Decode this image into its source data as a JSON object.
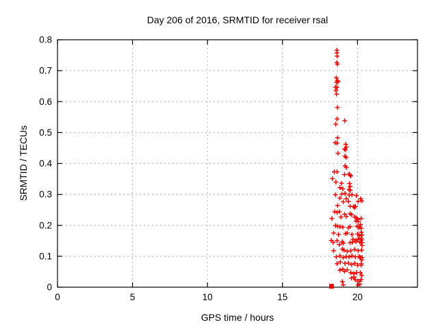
{
  "window": {
    "background": "#ffffff"
  },
  "colors": {
    "marker": "#ff0000",
    "frame": "#000000",
    "grid": "#a8a8a8",
    "text": "#000000"
  },
  "chart_data": {
    "type": "scatter",
    "title": "Day 206 of 2016, SRMTID for receiver rsal",
    "xlabel": "GPS time / hours",
    "ylabel": "SRMTID / TECUs",
    "xlim": [
      0,
      24
    ],
    "ylim": [
      0,
      0.8
    ],
    "xticks": {
      "values": [
        0,
        5,
        10,
        15,
        20
      ],
      "labels": [
        "0",
        "5",
        "10",
        "15",
        "20"
      ]
    },
    "yticks": {
      "values": [
        0,
        0.1,
        0.2,
        0.3,
        0.4,
        0.5,
        0.6,
        0.7,
        0.8
      ],
      "labels": [
        "0",
        "0.1",
        "0.2",
        "0.3",
        "0.4",
        "0.5",
        "0.6",
        "0.7",
        "0.8"
      ]
    },
    "grid": true,
    "legend": "none",
    "marker": "plus",
    "series": [
      {
        "name": "SRMTID",
        "points": [
          [
            18.62,
            0.766
          ],
          [
            18.63,
            0.758
          ],
          [
            18.65,
            0.747
          ],
          [
            18.62,
            0.726
          ],
          [
            18.66,
            0.721
          ],
          [
            18.59,
            0.677
          ],
          [
            18.67,
            0.668
          ],
          [
            18.7,
            0.664
          ],
          [
            18.6,
            0.662
          ],
          [
            18.53,
            0.647
          ],
          [
            18.64,
            0.646
          ],
          [
            18.56,
            0.636
          ],
          [
            18.6,
            0.624
          ],
          [
            18.67,
            0.581
          ],
          [
            18.64,
            0.544
          ],
          [
            19.15,
            0.538
          ],
          [
            18.55,
            0.527
          ],
          [
            18.68,
            0.483
          ],
          [
            18.51,
            0.467
          ],
          [
            18.64,
            0.466
          ],
          [
            19.22,
            0.462
          ],
          [
            19.25,
            0.453
          ],
          [
            19.15,
            0.447
          ],
          [
            19.19,
            0.444
          ],
          [
            18.7,
            0.433
          ],
          [
            19.17,
            0.424
          ],
          [
            19.24,
            0.419
          ],
          [
            19.17,
            0.392
          ],
          [
            19.26,
            0.387
          ],
          [
            18.45,
            0.373
          ],
          [
            18.64,
            0.373
          ],
          [
            19.44,
            0.366
          ],
          [
            19.14,
            0.364
          ],
          [
            19.51,
            0.362
          ],
          [
            19.55,
            0.36
          ],
          [
            18.33,
            0.351
          ],
          [
            18.56,
            0.34
          ],
          [
            18.94,
            0.336
          ],
          [
            19.47,
            0.335
          ],
          [
            19.51,
            0.325
          ],
          [
            18.83,
            0.322
          ],
          [
            19.02,
            0.318
          ],
          [
            19.44,
            0.316
          ],
          [
            19.51,
            0.313
          ],
          [
            19.17,
            0.303
          ],
          [
            18.96,
            0.301
          ],
          [
            18.53,
            0.299
          ],
          [
            19.63,
            0.299
          ],
          [
            19.44,
            0.298
          ],
          [
            19.93,
            0.296
          ],
          [
            18.83,
            0.288
          ],
          [
            19.25,
            0.286
          ],
          [
            20.21,
            0.286
          ],
          [
            20.28,
            0.279
          ],
          [
            19.4,
            0.277
          ],
          [
            20.05,
            0.277
          ],
          [
            19.05,
            0.276
          ],
          [
            18.68,
            0.264
          ],
          [
            19.51,
            0.262
          ],
          [
            19.75,
            0.261
          ],
          [
            19.86,
            0.261
          ],
          [
            19.8,
            0.258
          ],
          [
            18.48,
            0.244
          ],
          [
            18.79,
            0.244
          ],
          [
            18.64,
            0.242
          ],
          [
            19.51,
            0.238
          ],
          [
            19.14,
            0.236
          ],
          [
            19.6,
            0.234
          ],
          [
            19.25,
            0.229
          ],
          [
            18.9,
            0.227
          ],
          [
            19.81,
            0.227
          ],
          [
            19.93,
            0.224
          ],
          [
            18.29,
            0.222
          ],
          [
            20.24,
            0.222
          ],
          [
            20.01,
            0.219
          ],
          [
            19.9,
            0.214
          ],
          [
            20.05,
            0.212
          ],
          [
            20.19,
            0.202
          ],
          [
            18.53,
            0.199
          ],
          [
            18.68,
            0.197
          ],
          [
            19.96,
            0.197
          ],
          [
            18.83,
            0.196
          ],
          [
            19.51,
            0.196
          ],
          [
            20.16,
            0.196
          ],
          [
            19.02,
            0.194
          ],
          [
            19.4,
            0.192
          ],
          [
            20.08,
            0.192
          ],
          [
            20.24,
            0.19
          ],
          [
            20.25,
            0.178
          ],
          [
            18.41,
            0.175
          ],
          [
            19.32,
            0.175
          ],
          [
            19.2,
            0.173
          ],
          [
            20.01,
            0.172
          ],
          [
            18.74,
            0.17
          ],
          [
            19.63,
            0.17
          ],
          [
            20.3,
            0.169
          ],
          [
            20.11,
            0.166
          ],
          [
            20.25,
            0.158
          ],
          [
            19.7,
            0.155
          ],
          [
            20.05,
            0.155
          ],
          [
            20.28,
            0.153
          ],
          [
            18.25,
            0.151
          ],
          [
            19.9,
            0.151
          ],
          [
            18.64,
            0.15
          ],
          [
            18.99,
            0.147
          ],
          [
            19.9,
            0.147
          ],
          [
            20.16,
            0.147
          ],
          [
            18.38,
            0.145
          ],
          [
            19.66,
            0.145
          ],
          [
            19.51,
            0.144
          ],
          [
            20.24,
            0.144
          ],
          [
            20.31,
            0.144
          ],
          [
            19.05,
            0.142
          ],
          [
            18.79,
            0.138
          ],
          [
            20.31,
            0.135
          ],
          [
            18.99,
            0.123
          ],
          [
            19.81,
            0.122
          ],
          [
            19.1,
            0.12
          ],
          [
            20.27,
            0.12
          ],
          [
            18.41,
            0.118
          ],
          [
            19.55,
            0.118
          ],
          [
            20.05,
            0.118
          ],
          [
            19.32,
            0.116
          ],
          [
            18.83,
            0.101
          ],
          [
            19.63,
            0.101
          ],
          [
            19.25,
            0.099
          ],
          [
            20.11,
            0.099
          ],
          [
            18.59,
            0.098
          ],
          [
            19.44,
            0.098
          ],
          [
            19.86,
            0.098
          ],
          [
            19.05,
            0.096
          ],
          [
            20.19,
            0.096
          ],
          [
            20.31,
            0.096
          ],
          [
            20.28,
            0.088
          ],
          [
            18.86,
            0.081
          ],
          [
            19.4,
            0.078
          ],
          [
            19.17,
            0.077
          ],
          [
            19.81,
            0.077
          ],
          [
            18.64,
            0.076
          ],
          [
            20.24,
            0.076
          ],
          [
            19.6,
            0.073
          ],
          [
            20.01,
            0.071
          ],
          [
            20.24,
            0.071
          ],
          [
            19.02,
            0.058
          ],
          [
            19.32,
            0.056
          ],
          [
            18.83,
            0.055
          ],
          [
            19.14,
            0.051
          ],
          [
            19.55,
            0.047
          ],
          [
            19.93,
            0.047
          ],
          [
            20.19,
            0.047
          ],
          [
            19.75,
            0.044
          ],
          [
            20.28,
            0.038
          ],
          [
            19.78,
            0.033
          ],
          [
            19.6,
            0.029
          ],
          [
            20.24,
            0.025
          ],
          [
            19.86,
            0.024
          ],
          [
            20.05,
            0.019
          ],
          [
            20.16,
            0.019
          ],
          [
            18.99,
            0.018
          ],
          [
            20.16,
            0.01
          ],
          [
            19.05,
            0.007
          ],
          [
            20.05,
            0.007
          ]
        ]
      }
    ],
    "overlap_square_marker": {
      "hour": 18.27,
      "value": 0.003
    }
  }
}
